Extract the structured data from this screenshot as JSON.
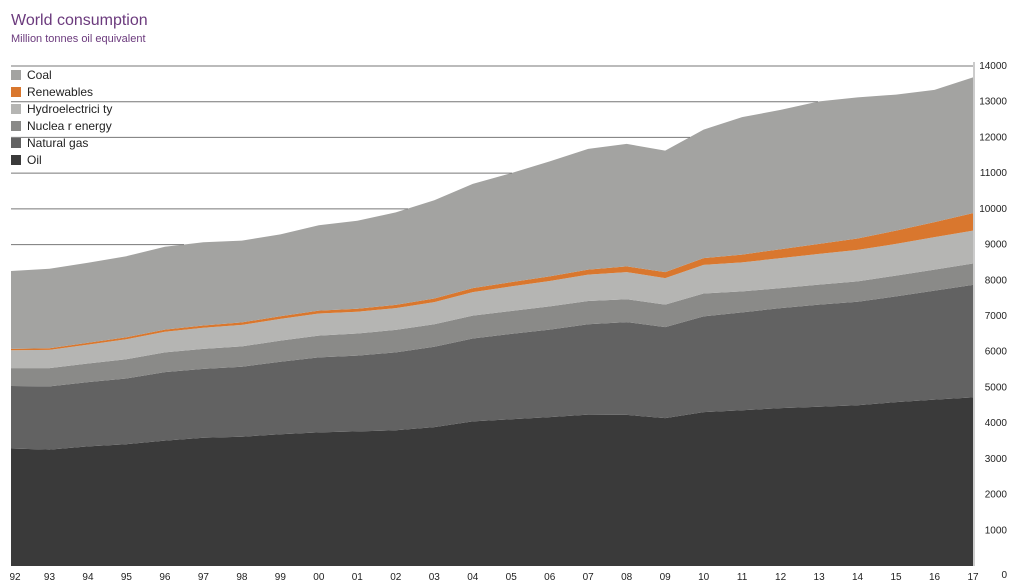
{
  "chart_data": {
    "type": "area",
    "stacked": true,
    "title": "World consumption",
    "subtitle": "Million tonnes oil equivalent",
    "xlabel": "",
    "ylabel": "",
    "categories": [
      "92",
      "93",
      "94",
      "95",
      "96",
      "97",
      "98",
      "99",
      "00",
      "01",
      "02",
      "03",
      "04",
      "05",
      "06",
      "07",
      "08",
      "09",
      "10",
      "11",
      "12",
      "13",
      "14",
      "15",
      "16",
      "17"
    ],
    "ylim": [
      0,
      14000
    ],
    "yticks": [
      0,
      1000,
      2000,
      3000,
      4000,
      5000,
      6000,
      7000,
      8000,
      9000,
      10000,
      11000,
      12000,
      13000,
      14000
    ],
    "grid": true,
    "legend_position": "top-left",
    "series": [
      {
        "name": "Oil",
        "color": "#3a3a3a",
        "values": [
          3290,
          3260,
          3350,
          3410,
          3510,
          3590,
          3620,
          3690,
          3740,
          3770,
          3800,
          3890,
          4050,
          4110,
          4170,
          4240,
          4230,
          4140,
          4310,
          4360,
          4420,
          4460,
          4500,
          4590,
          4660,
          4720
        ]
      },
      {
        "name": "Natural gas",
        "color": "#626262",
        "values": [
          1750,
          1770,
          1800,
          1840,
          1920,
          1930,
          1960,
          2030,
          2100,
          2120,
          2180,
          2250,
          2320,
          2390,
          2450,
          2530,
          2600,
          2550,
          2680,
          2740,
          2800,
          2860,
          2900,
          2960,
          3050,
          3150
        ]
      },
      {
        "name": "Nuclea r energy",
        "color": "#8a8a88",
        "values": [
          500,
          510,
          520,
          540,
          550,
          560,
          570,
          590,
          610,
          620,
          630,
          630,
          640,
          640,
          650,
          650,
          640,
          630,
          640,
          590,
          560,
          560,
          570,
          580,
          590,
          600
        ]
      },
      {
        "name": "Hydroelectrici ty",
        "color": "#b5b5b3",
        "values": [
          500,
          510,
          530,
          560,
          580,
          590,
          600,
          610,
          620,
          610,
          610,
          620,
          660,
          690,
          710,
          740,
          760,
          740,
          800,
          810,
          840,
          860,
          880,
          890,
          910,
          920
        ]
      },
      {
        "name": "Renewables",
        "color": "#d9772e",
        "values": [
          40,
          45,
          50,
          55,
          60,
          65,
          70,
          75,
          80,
          85,
          90,
          100,
          110,
          120,
          130,
          140,
          160,
          170,
          190,
          220,
          250,
          280,
          320,
          370,
          420,
          490
        ]
      },
      {
        "name": "Coal",
        "color": "#a3a3a1",
        "values": [
          2180,
          2230,
          2240,
          2270,
          2320,
          2330,
          2290,
          2290,
          2390,
          2460,
          2590,
          2750,
          2920,
          3050,
          3220,
          3380,
          3430,
          3400,
          3600,
          3850,
          3900,
          3990,
          3950,
          3810,
          3700,
          3800
        ]
      }
    ]
  },
  "legend_order": [
    "Coal",
    "Renewables",
    "Hydroelectrici ty",
    "Nuclea r energy",
    "Natural gas",
    "Oil"
  ]
}
